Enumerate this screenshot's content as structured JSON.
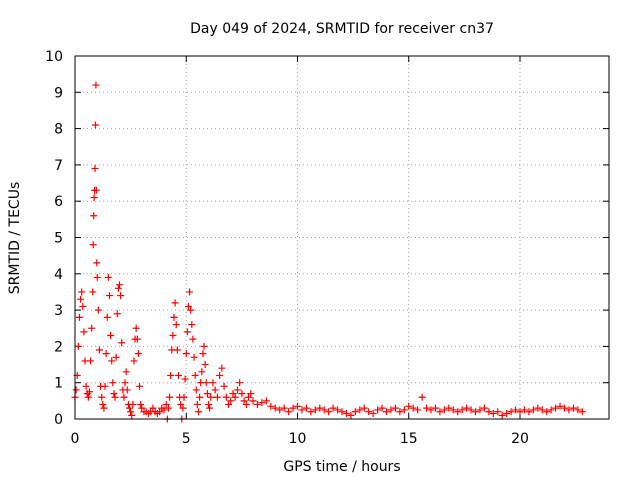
{
  "chart_data": {
    "type": "scatter",
    "title": "Day 049 of 2024, SRMTID for receiver cn37",
    "xlabel": "GPS time / hours",
    "ylabel": "SRMTID / TECUs",
    "xlim": [
      0,
      24
    ],
    "ylim": [
      0,
      10
    ],
    "x_ticks": [
      0,
      5,
      10,
      15,
      20
    ],
    "y_ticks": [
      0,
      1,
      2,
      3,
      4,
      5,
      6,
      7,
      8,
      9,
      10
    ],
    "x_tick_labels": [
      "0",
      "5",
      "10",
      "15",
      "20"
    ],
    "y_tick_labels": [
      "0",
      "1",
      "2",
      "3",
      "4",
      "5",
      "6",
      "7",
      "8",
      "9",
      "10"
    ],
    "grid": true,
    "marker": "+",
    "color": "#ff0000",
    "series": [
      {
        "name": "SRMTID",
        "points": [
          [
            0.0,
            0.6
          ],
          [
            0.05,
            0.8
          ],
          [
            0.1,
            1.2
          ],
          [
            0.15,
            2.0
          ],
          [
            0.2,
            2.8
          ],
          [
            0.25,
            3.3
          ],
          [
            0.3,
            3.5
          ],
          [
            0.35,
            3.1
          ],
          [
            0.4,
            2.4
          ],
          [
            0.45,
            1.6
          ],
          [
            0.5,
            0.9
          ],
          [
            0.55,
            0.7
          ],
          [
            0.6,
            0.6
          ],
          [
            0.65,
            0.75
          ],
          [
            0.7,
            1.6
          ],
          [
            0.75,
            2.5
          ],
          [
            0.8,
            3.5
          ],
          [
            0.82,
            4.8
          ],
          [
            0.84,
            5.6
          ],
          [
            0.86,
            6.1
          ],
          [
            0.88,
            6.3
          ],
          [
            0.9,
            6.9
          ],
          [
            0.92,
            8.1
          ],
          [
            0.94,
            9.2
          ],
          [
            0.96,
            6.3
          ],
          [
            0.98,
            4.3
          ],
          [
            1.0,
            3.9
          ],
          [
            1.05,
            3.0
          ],
          [
            1.1,
            1.9
          ],
          [
            1.15,
            0.9
          ],
          [
            1.2,
            0.6
          ],
          [
            1.25,
            0.4
          ],
          [
            1.3,
            0.3
          ],
          [
            1.35,
            0.9
          ],
          [
            1.4,
            1.8
          ],
          [
            1.45,
            2.8
          ],
          [
            1.5,
            3.9
          ],
          [
            1.55,
            3.4
          ],
          [
            1.6,
            2.3
          ],
          [
            1.65,
            1.6
          ],
          [
            1.7,
            1.0
          ],
          [
            1.75,
            0.7
          ],
          [
            1.8,
            0.6
          ],
          [
            1.85,
            1.7
          ],
          [
            1.9,
            2.9
          ],
          [
            1.95,
            3.6
          ],
          [
            2.0,
            3.7
          ],
          [
            2.05,
            3.4
          ],
          [
            2.1,
            2.1
          ],
          [
            2.15,
            0.8
          ],
          [
            2.2,
            0.6
          ],
          [
            2.25,
            1.0
          ],
          [
            2.3,
            1.3
          ],
          [
            2.35,
            0.8
          ],
          [
            2.4,
            0.4
          ],
          [
            2.45,
            0.3
          ],
          [
            2.5,
            0.2
          ],
          [
            2.55,
            0.1
          ],
          [
            2.6,
            0.4
          ],
          [
            2.65,
            1.6
          ],
          [
            2.7,
            2.2
          ],
          [
            2.75,
            2.5
          ],
          [
            2.8,
            2.2
          ],
          [
            2.85,
            1.8
          ],
          [
            2.9,
            0.9
          ],
          [
            2.95,
            0.4
          ],
          [
            3.0,
            0.3
          ],
          [
            3.1,
            0.2
          ],
          [
            3.2,
            0.2
          ],
          [
            3.3,
            0.15
          ],
          [
            3.4,
            0.2
          ],
          [
            3.5,
            0.3
          ],
          [
            3.6,
            0.2
          ],
          [
            3.7,
            0.15
          ],
          [
            3.8,
            0.2
          ],
          [
            3.9,
            0.3
          ],
          [
            4.0,
            0.25
          ],
          [
            4.1,
            0.4
          ],
          [
            4.15,
            0.0
          ],
          [
            4.2,
            0.3
          ],
          [
            4.25,
            0.6
          ],
          [
            4.3,
            1.2
          ],
          [
            4.35,
            1.9
          ],
          [
            4.4,
            2.3
          ],
          [
            4.45,
            2.8
          ],
          [
            4.5,
            3.2
          ],
          [
            4.55,
            2.6
          ],
          [
            4.6,
            1.9
          ],
          [
            4.65,
            1.2
          ],
          [
            4.7,
            0.6
          ],
          [
            4.75,
            0.4
          ],
          [
            4.8,
            0.0
          ],
          [
            4.85,
            0.3
          ],
          [
            4.9,
            0.6
          ],
          [
            4.95,
            1.1
          ],
          [
            5.0,
            1.8
          ],
          [
            5.05,
            2.4
          ],
          [
            5.1,
            3.1
          ],
          [
            5.15,
            3.5
          ],
          [
            5.2,
            3.0
          ],
          [
            5.25,
            2.6
          ],
          [
            5.3,
            2.2
          ],
          [
            5.35,
            1.7
          ],
          [
            5.4,
            1.2
          ],
          [
            5.45,
            0.8
          ],
          [
            5.5,
            0.4
          ],
          [
            5.55,
            0.2
          ],
          [
            5.6,
            0.6
          ],
          [
            5.65,
            1.0
          ],
          [
            5.7,
            1.3
          ],
          [
            5.75,
            1.8
          ],
          [
            5.8,
            2.0
          ],
          [
            5.85,
            1.5
          ],
          [
            5.9,
            1.0
          ],
          [
            5.95,
            0.7
          ],
          [
            6.0,
            0.4
          ],
          [
            6.05,
            0.3
          ],
          [
            6.1,
            0.6
          ],
          [
            6.2,
            1.0
          ],
          [
            6.3,
            0.8
          ],
          [
            6.4,
            0.6
          ],
          [
            6.5,
            1.2
          ],
          [
            6.6,
            1.4
          ],
          [
            6.7,
            0.9
          ],
          [
            6.8,
            0.6
          ],
          [
            6.9,
            0.4
          ],
          [
            7.0,
            0.5
          ],
          [
            7.1,
            0.7
          ],
          [
            7.2,
            0.6
          ],
          [
            7.3,
            0.8
          ],
          [
            7.4,
            1.0
          ],
          [
            7.5,
            0.7
          ],
          [
            7.6,
            0.5
          ],
          [
            7.7,
            0.4
          ],
          [
            7.8,
            0.6
          ],
          [
            7.9,
            0.7
          ],
          [
            8.0,
            0.5
          ],
          [
            8.2,
            0.4
          ],
          [
            8.4,
            0.45
          ],
          [
            8.6,
            0.5
          ],
          [
            8.8,
            0.35
          ],
          [
            9.0,
            0.3
          ],
          [
            9.2,
            0.25
          ],
          [
            9.4,
            0.3
          ],
          [
            9.6,
            0.2
          ],
          [
            9.8,
            0.3
          ],
          [
            10.0,
            0.35
          ],
          [
            10.2,
            0.25
          ],
          [
            10.4,
            0.3
          ],
          [
            10.6,
            0.2
          ],
          [
            10.8,
            0.25
          ],
          [
            11.0,
            0.3
          ],
          [
            11.2,
            0.25
          ],
          [
            11.4,
            0.2
          ],
          [
            11.6,
            0.3
          ],
          [
            11.8,
            0.25
          ],
          [
            12.0,
            0.2
          ],
          [
            12.2,
            0.15
          ],
          [
            12.4,
            0.1
          ],
          [
            12.6,
            0.2
          ],
          [
            12.8,
            0.25
          ],
          [
            13.0,
            0.3
          ],
          [
            13.2,
            0.2
          ],
          [
            13.4,
            0.15
          ],
          [
            13.6,
            0.25
          ],
          [
            13.8,
            0.3
          ],
          [
            14.0,
            0.2
          ],
          [
            14.2,
            0.25
          ],
          [
            14.4,
            0.3
          ],
          [
            14.6,
            0.2
          ],
          [
            14.8,
            0.25
          ],
          [
            15.0,
            0.35
          ],
          [
            15.2,
            0.3
          ],
          [
            15.4,
            0.25
          ],
          [
            15.6,
            0.6
          ],
          [
            15.8,
            0.3
          ],
          [
            16.0,
            0.25
          ],
          [
            16.2,
            0.3
          ],
          [
            16.4,
            0.2
          ],
          [
            16.6,
            0.25
          ],
          [
            16.8,
            0.3
          ],
          [
            17.0,
            0.25
          ],
          [
            17.2,
            0.2
          ],
          [
            17.4,
            0.25
          ],
          [
            17.6,
            0.3
          ],
          [
            17.8,
            0.25
          ],
          [
            18.0,
            0.2
          ],
          [
            18.2,
            0.25
          ],
          [
            18.4,
            0.3
          ],
          [
            18.6,
            0.2
          ],
          [
            18.8,
            0.15
          ],
          [
            19.0,
            0.2
          ],
          [
            19.2,
            0.1
          ],
          [
            19.4,
            0.15
          ],
          [
            19.6,
            0.2
          ],
          [
            19.8,
            0.25
          ],
          [
            20.0,
            0.2
          ],
          [
            20.2,
            0.25
          ],
          [
            20.4,
            0.2
          ],
          [
            20.6,
            0.25
          ],
          [
            20.8,
            0.3
          ],
          [
            21.0,
            0.25
          ],
          [
            21.2,
            0.2
          ],
          [
            21.4,
            0.25
          ],
          [
            21.6,
            0.3
          ],
          [
            21.8,
            0.35
          ],
          [
            22.0,
            0.3
          ],
          [
            22.2,
            0.25
          ],
          [
            22.4,
            0.3
          ],
          [
            22.6,
            0.25
          ],
          [
            22.8,
            0.2
          ]
        ]
      }
    ]
  }
}
